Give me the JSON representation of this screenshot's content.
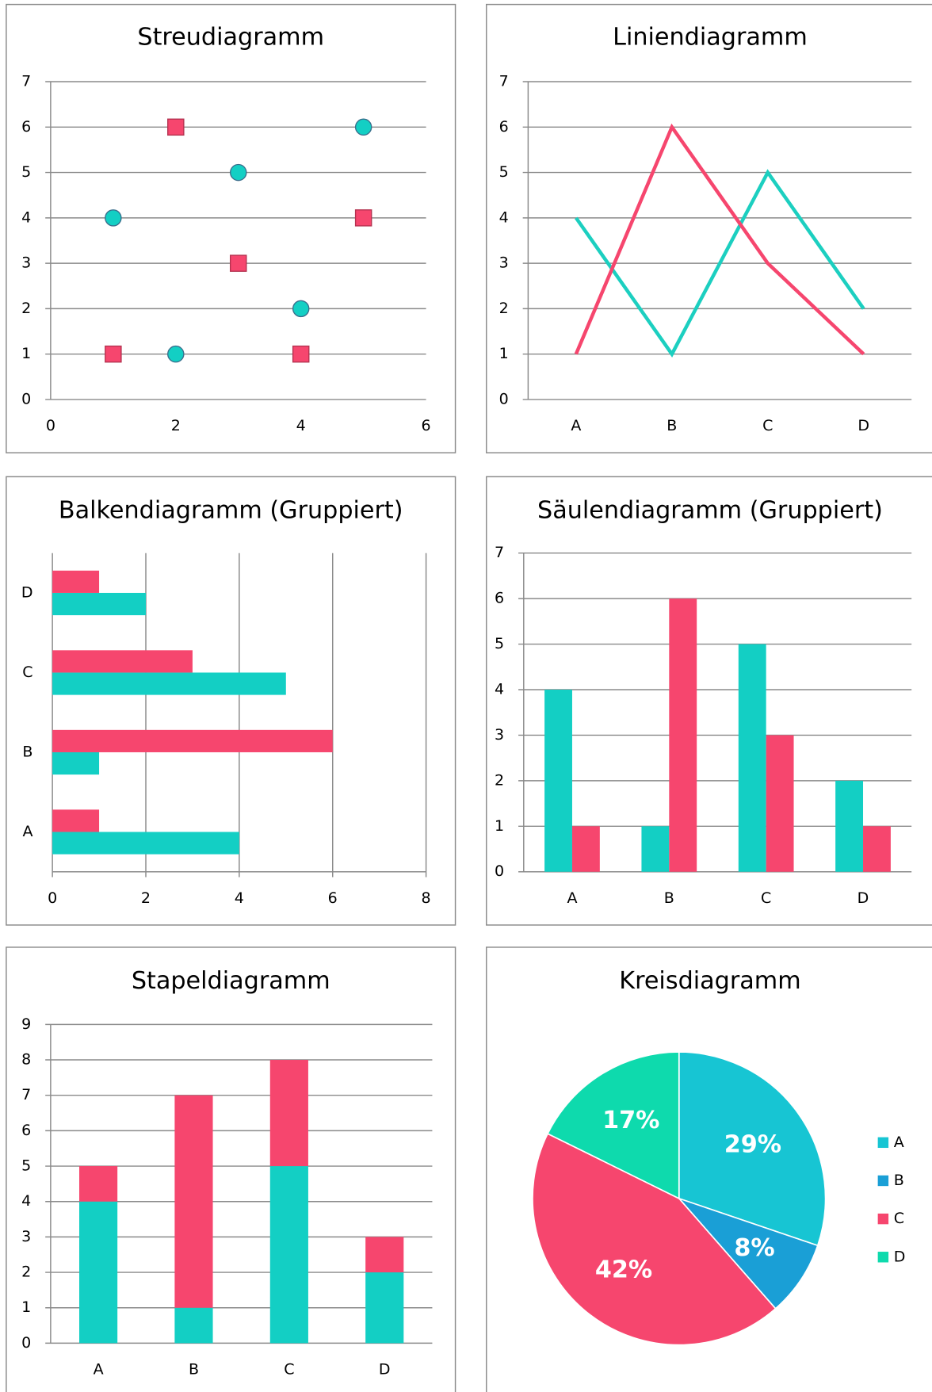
{
  "chart_data": [
    {
      "type": "scatter",
      "title": "Streudiagramm",
      "grid": true,
      "xlim": [
        0,
        6
      ],
      "xticks": [
        0,
        2,
        4,
        6
      ],
      "ylim": [
        0,
        7
      ],
      "yticks": [
        0,
        1,
        2,
        3,
        4,
        5,
        6,
        7
      ],
      "series": [
        {
          "color": "#13cfc4",
          "marker": "circle",
          "x": [
            1,
            2,
            3,
            4,
            5
          ],
          "values": [
            4,
            1,
            5,
            2,
            6
          ]
        },
        {
          "color": "#f6466e",
          "marker": "square",
          "x": [
            1,
            2,
            3,
            4,
            5
          ],
          "values": [
            1,
            6,
            3,
            1,
            4
          ]
        }
      ]
    },
    {
      "type": "line",
      "title": "Liniendiagramm",
      "grid": true,
      "categories": [
        "A",
        "B",
        "C",
        "D"
      ],
      "ylim": [
        0,
        7
      ],
      "yticks": [
        0,
        1,
        2,
        3,
        4,
        5,
        6,
        7
      ],
      "series": [
        {
          "color": "#1ccfc0",
          "values": [
            4,
            1,
            5,
            2
          ]
        },
        {
          "color": "#f6466e",
          "values": [
            1,
            6,
            3,
            1
          ]
        }
      ]
    },
    {
      "type": "hbar",
      "title": "Balkendiagramm (Gruppiert)",
      "grid": true,
      "categories": [
        "A",
        "B",
        "C",
        "D"
      ],
      "xlim": [
        0,
        8
      ],
      "xticks": [
        0,
        2,
        4,
        6,
        8
      ],
      "series": [
        {
          "color": "#13cfc4",
          "values": [
            4,
            1,
            5,
            2
          ]
        },
        {
          "color": "#f6466e",
          "values": [
            1,
            6,
            3,
            1
          ]
        }
      ]
    },
    {
      "type": "column",
      "title": "Säulendiagramm (Gruppiert)",
      "grid": true,
      "categories": [
        "A",
        "B",
        "C",
        "D"
      ],
      "ylim": [
        0,
        7
      ],
      "yticks": [
        0,
        1,
        2,
        3,
        4,
        5,
        6,
        7
      ],
      "series": [
        {
          "color": "#13cfc4",
          "values": [
            4,
            1,
            5,
            2
          ]
        },
        {
          "color": "#f6466e",
          "values": [
            1,
            6,
            3,
            1
          ]
        }
      ]
    },
    {
      "type": "stacked",
      "title": "Stapeldiagramm",
      "grid": true,
      "categories": [
        "A",
        "B",
        "C",
        "D"
      ],
      "ylim": [
        0,
        9
      ],
      "yticks": [
        0,
        1,
        2,
        3,
        4,
        5,
        6,
        7,
        8,
        9
      ],
      "series": [
        {
          "color": "#13cfc4",
          "values": [
            4,
            1,
            5,
            2
          ]
        },
        {
          "color": "#f6466e",
          "values": [
            1,
            6,
            3,
            1
          ]
        }
      ]
    },
    {
      "type": "pie",
      "title": "Kreisdiagramm",
      "legend": "right",
      "categories": [
        "A",
        "B",
        "C",
        "D"
      ],
      "values": [
        29,
        8,
        42,
        17
      ],
      "value_labels": [
        "29%",
        "8%",
        "42%",
        "17%"
      ],
      "colors": [
        "#17c5d3",
        "#1a9fd6",
        "#f6466e",
        "#0edaad"
      ]
    }
  ]
}
